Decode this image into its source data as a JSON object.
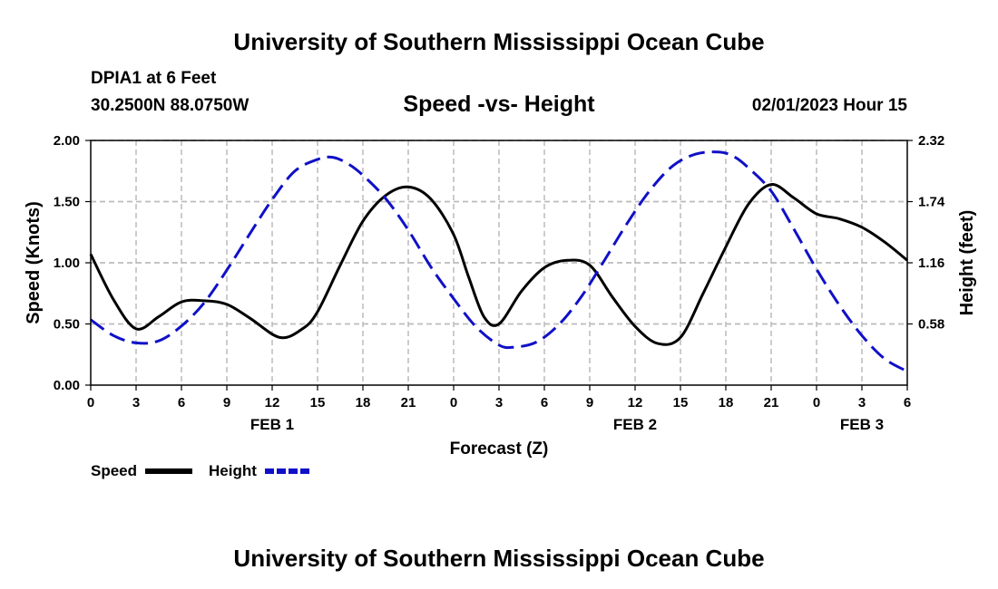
{
  "header": {
    "title": "University of Southern Mississippi Ocean Cube",
    "station": "DPIA1 at 6 Feet",
    "coords": "30.2500N  88.0750W",
    "datetime": "02/01/2023 Hour 15"
  },
  "footer": {
    "title": "University of Southern Mississippi Ocean Cube"
  },
  "legend": {
    "speed_label": "Speed",
    "height_label": "Height"
  },
  "colors": {
    "speed": "#000000",
    "height": "#1010c8",
    "grid": "#bbbbbb"
  },
  "chart_data": {
    "type": "line",
    "title": "Speed -vs- Height",
    "xlabel": "Forecast (Z)",
    "ylabel": "Speed (Knots)",
    "y2label": "Height (feet)",
    "x_ticks": [
      0,
      3,
      6,
      9,
      12,
      15,
      18,
      21,
      24,
      27,
      30,
      33,
      36,
      39,
      42,
      45,
      48,
      51,
      54
    ],
    "x_tick_labels": [
      "0",
      "3",
      "6",
      "9",
      "12",
      "15",
      "18",
      "21",
      "0",
      "3",
      "6",
      "9",
      "12",
      "15",
      "18",
      "21",
      "0",
      "3",
      "6"
    ],
    "date_labels": [
      {
        "x": 12,
        "label": "FEB 1"
      },
      {
        "x": 36,
        "label": "FEB 2"
      },
      {
        "x": 51,
        "label": "FEB 3"
      }
    ],
    "xlim": [
      0,
      54
    ],
    "ylim": [
      0,
      2.0
    ],
    "y_ticks": [
      0,
      0.5,
      1.0,
      1.5,
      2.0
    ],
    "y_tick_labels": [
      "0.00",
      "0.50",
      "1.00",
      "1.50",
      "2.00"
    ],
    "y2lim": [
      0,
      2.32
    ],
    "y2_ticks": [
      0.58,
      1.16,
      1.74,
      2.32
    ],
    "y2_tick_labels": [
      "0.58",
      "1.16",
      "1.74",
      "2.32"
    ],
    "series": [
      {
        "name": "Speed",
        "axis": "left",
        "style": "solid",
        "x": [
          0,
          1.5,
          3,
          4.5,
          6,
          7.5,
          9,
          10.5,
          12.5,
          14,
          15,
          16.5,
          18,
          19.5,
          21,
          22.5,
          24,
          25,
          26,
          27,
          28.5,
          30,
          31.5,
          33,
          34.5,
          36,
          37.5,
          39,
          40.5,
          42,
          43.5,
          45,
          46.5,
          48,
          49.5,
          51,
          52.5,
          54
        ],
        "values": [
          1.07,
          0.7,
          0.46,
          0.56,
          0.68,
          0.69,
          0.66,
          0.55,
          0.39,
          0.46,
          0.6,
          0.98,
          1.34,
          1.55,
          1.62,
          1.52,
          1.23,
          0.88,
          0.56,
          0.5,
          0.77,
          0.96,
          1.02,
          0.98,
          0.72,
          0.48,
          0.34,
          0.39,
          0.75,
          1.13,
          1.48,
          1.64,
          1.53,
          1.4,
          1.36,
          1.29,
          1.17,
          1.02
        ]
      },
      {
        "name": "Height",
        "axis": "right",
        "style": "dashed",
        "x": [
          0,
          1.5,
          3,
          4.5,
          6,
          7.5,
          9,
          10.5,
          12,
          13.5,
          15,
          16,
          17,
          18,
          19.5,
          21,
          22.5,
          24,
          25.5,
          27,
          28,
          29.5,
          31,
          32.5,
          34,
          35.5,
          37,
          38.5,
          40,
          41.5,
          42.5,
          43.5,
          45,
          46.5,
          48,
          49.5,
          51,
          52.5,
          54
        ],
        "values": [
          0.62,
          0.47,
          0.4,
          0.42,
          0.56,
          0.78,
          1.09,
          1.43,
          1.76,
          2.03,
          2.14,
          2.16,
          2.1,
          1.99,
          1.77,
          1.47,
          1.12,
          0.82,
          0.55,
          0.38,
          0.36,
          0.41,
          0.58,
          0.85,
          1.19,
          1.54,
          1.85,
          2.08,
          2.19,
          2.21,
          2.17,
          2.06,
          1.84,
          1.48,
          1.1,
          0.76,
          0.47,
          0.25,
          0.13
        ]
      }
    ]
  }
}
